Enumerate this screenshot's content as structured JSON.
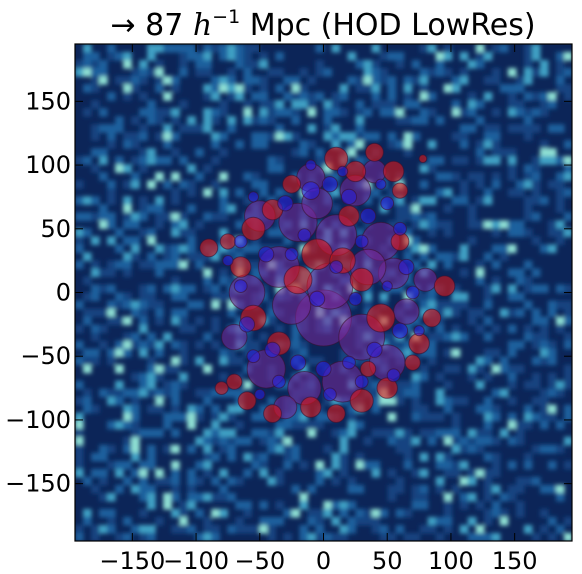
{
  "title_prefix": "→ 87 ",
  "title_h": "h",
  "title_exp": "−1",
  "title_suffix": " Mpc (HOD LowRes)",
  "chart_data": {
    "type": "heatmap",
    "title": "→ 87 h⁻¹ Mpc (HOD LowRes)",
    "xlim": [
      -195,
      195
    ],
    "ylim": [
      -195,
      195
    ],
    "x_ticks": [
      -150,
      -100,
      -50,
      0,
      50,
      100,
      150
    ],
    "y_ticks": [
      -150,
      -100,
      -50,
      0,
      50,
      100,
      150
    ],
    "x_tick_labels": [
      "−150",
      "−100",
      "−50",
      "0",
      "50",
      "100",
      "150"
    ],
    "y_tick_labels": [
      "−150",
      "−100",
      "−50",
      "0",
      "50",
      "100",
      "150"
    ],
    "xlabel": "",
    "ylabel": "",
    "grid": false,
    "colors": {
      "background_low": "#0c2558",
      "background_mid": "#1f6aa8",
      "background_high": "#8fe0d4",
      "overlay_red": "#e01818",
      "overlay_purple": "#7a2a9a",
      "overlay_blue": "#2a1fd8"
    },
    "red_circles": [
      {
        "x": -90,
        "y": 35,
        "r": 7
      },
      {
        "x": -75,
        "y": 40,
        "r": 6
      },
      {
        "x": -55,
        "y": 50,
        "r": 9
      },
      {
        "x": -40,
        "y": 65,
        "r": 8
      },
      {
        "x": -25,
        "y": 85,
        "r": 7
      },
      {
        "x": 10,
        "y": 105,
        "r": 9
      },
      {
        "x": 25,
        "y": 95,
        "r": 8
      },
      {
        "x": 40,
        "y": 110,
        "r": 7
      },
      {
        "x": 55,
        "y": 95,
        "r": 8
      },
      {
        "x": 60,
        "y": 80,
        "r": 6
      },
      {
        "x": 78,
        "y": 105,
        "r": 3
      },
      {
        "x": 95,
        "y": 5,
        "r": 8
      },
      {
        "x": 85,
        "y": -20,
        "r": 7
      },
      {
        "x": 75,
        "y": -40,
        "r": 8
      },
      {
        "x": 70,
        "y": -55,
        "r": 6
      },
      {
        "x": -70,
        "y": -70,
        "r": 6
      },
      {
        "x": -80,
        "y": -75,
        "r": 5
      },
      {
        "x": -60,
        "y": -85,
        "r": 7
      },
      {
        "x": -40,
        "y": -95,
        "r": 7
      },
      {
        "x": -10,
        "y": -90,
        "r": 8
      },
      {
        "x": 10,
        "y": -95,
        "r": 7
      },
      {
        "x": 30,
        "y": -85,
        "r": 9
      },
      {
        "x": 50,
        "y": -75,
        "r": 8
      },
      {
        "x": 35,
        "y": -60,
        "r": 6
      },
      {
        "x": -5,
        "y": 30,
        "r": 12
      },
      {
        "x": 15,
        "y": 25,
        "r": 10
      },
      {
        "x": -20,
        "y": 10,
        "r": 11
      },
      {
        "x": 30,
        "y": 10,
        "r": 9
      },
      {
        "x": -55,
        "y": -20,
        "r": 10
      },
      {
        "x": -35,
        "y": -40,
        "r": 9
      },
      {
        "x": 45,
        "y": -20,
        "r": 11
      },
      {
        "x": 20,
        "y": 60,
        "r": 8
      },
      {
        "x": -65,
        "y": 20,
        "r": 8
      },
      {
        "x": 60,
        "y": 40,
        "r": 7
      }
    ],
    "purple_circles": [
      {
        "x": -60,
        "y": 0,
        "r": 14
      },
      {
        "x": -35,
        "y": 20,
        "r": 16
      },
      {
        "x": 0,
        "y": -20,
        "r": 22
      },
      {
        "x": 30,
        "y": -35,
        "r": 18
      },
      {
        "x": 10,
        "y": 45,
        "r": 16
      },
      {
        "x": -20,
        "y": 55,
        "r": 15
      },
      {
        "x": 45,
        "y": 40,
        "r": 15
      },
      {
        "x": -45,
        "y": -60,
        "r": 15
      },
      {
        "x": 15,
        "y": -70,
        "r": 16
      },
      {
        "x": 50,
        "y": -55,
        "r": 14
      },
      {
        "x": -15,
        "y": -75,
        "r": 13
      },
      {
        "x": 25,
        "y": 80,
        "r": 12
      },
      {
        "x": -10,
        "y": 90,
        "r": 11
      },
      {
        "x": 55,
        "y": 15,
        "r": 12
      },
      {
        "x": -50,
        "y": 60,
        "r": 12
      },
      {
        "x": 35,
        "y": 20,
        "r": 14
      },
      {
        "x": -25,
        "y": -10,
        "r": 15
      },
      {
        "x": 65,
        "y": -15,
        "r": 10
      },
      {
        "x": 80,
        "y": 10,
        "r": 9
      },
      {
        "x": -70,
        "y": -35,
        "r": 10
      },
      {
        "x": 5,
        "y": 5,
        "r": 18
      },
      {
        "x": -5,
        "y": 70,
        "r": 12
      },
      {
        "x": 40,
        "y": 95,
        "r": 9
      },
      {
        "x": -30,
        "y": -90,
        "r": 9
      }
    ],
    "blue_circles": [
      {
        "x": -65,
        "y": 40,
        "r": 5
      },
      {
        "x": -45,
        "y": 30,
        "r": 6
      },
      {
        "x": -30,
        "y": 70,
        "r": 6
      },
      {
        "x": -10,
        "y": 80,
        "r": 7
      },
      {
        "x": 5,
        "y": 85,
        "r": 6
      },
      {
        "x": 20,
        "y": 75,
        "r": 6
      },
      {
        "x": 35,
        "y": 60,
        "r": 6
      },
      {
        "x": 50,
        "y": 70,
        "r": 5
      },
      {
        "x": 60,
        "y": 50,
        "r": 5
      },
      {
        "x": 65,
        "y": 20,
        "r": 6
      },
      {
        "x": 70,
        "y": 0,
        "r": 5
      },
      {
        "x": 60,
        "y": -30,
        "r": 6
      },
      {
        "x": 40,
        "y": -45,
        "r": 6
      },
      {
        "x": 20,
        "y": -55,
        "r": 5
      },
      {
        "x": 0,
        "y": -60,
        "r": 6
      },
      {
        "x": -20,
        "y": -55,
        "r": 6
      },
      {
        "x": -40,
        "y": -45,
        "r": 6
      },
      {
        "x": -55,
        "y": -50,
        "r": 5
      },
      {
        "x": -60,
        "y": -25,
        "r": 6
      },
      {
        "x": -65,
        "y": 5,
        "r": 5
      },
      {
        "x": -25,
        "y": 30,
        "r": 5
      },
      {
        "x": 10,
        "y": 20,
        "r": 5
      },
      {
        "x": 25,
        "y": -5,
        "r": 5
      },
      {
        "x": -5,
        "y": -5,
        "r": 6
      },
      {
        "x": -15,
        "y": 45,
        "r": 5
      },
      {
        "x": 30,
        "y": 40,
        "r": 5
      },
      {
        "x": -35,
        "y": -70,
        "r": 5
      },
      {
        "x": 5,
        "y": -80,
        "r": 5
      },
      {
        "x": 30,
        "y": -70,
        "r": 5
      },
      {
        "x": 55,
        "y": -65,
        "r": 5
      },
      {
        "x": -50,
        "y": -80,
        "r": 4
      },
      {
        "x": -10,
        "y": 100,
        "r": 4
      },
      {
        "x": 15,
        "y": 95,
        "r": 4
      },
      {
        "x": 45,
        "y": 85,
        "r": 4
      },
      {
        "x": 75,
        "y": -30,
        "r": 4
      },
      {
        "x": -75,
        "y": 25,
        "r": 4
      },
      {
        "x": -55,
        "y": 75,
        "r": 4
      },
      {
        "x": 50,
        "y": 5,
        "r": 4
      }
    ]
  }
}
